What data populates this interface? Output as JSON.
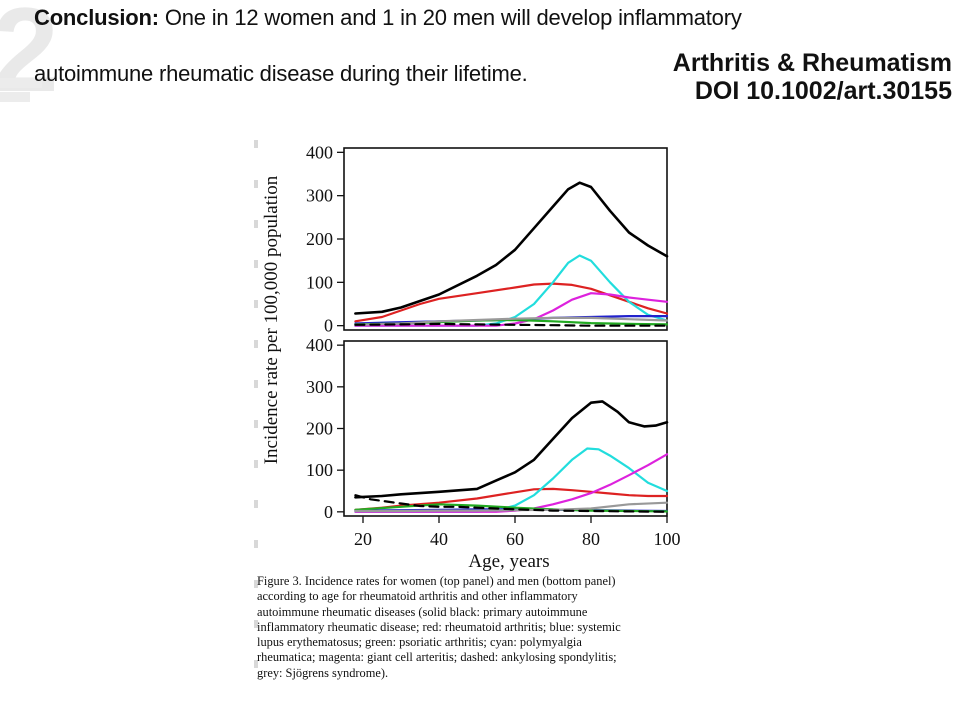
{
  "heading": {
    "label": "Conclusion:",
    "line1": " One in 12 women and 1 in 20 men will develop inflammatory",
    "line2": "autoimmune rheumatic disease during their lifetime."
  },
  "journal": {
    "name": "Arthritis & Rheumatism",
    "doi": "DOI 10.1002/art.30155"
  },
  "chart_data": {
    "type": "line",
    "xlabel": "Age, years",
    "ylabel": "Incidence rate per 100,000 population",
    "xlim": [
      15,
      100
    ],
    "ylim": [
      -10,
      410
    ],
    "x_ticks": [
      20,
      40,
      60,
      80,
      100
    ],
    "y_ticks": [
      0,
      100,
      200,
      300,
      400
    ],
    "panels": [
      {
        "series": [
          {
            "color": "#000000",
            "style": "solid",
            "points": [
              [
                18,
                28
              ],
              [
                25,
                32
              ],
              [
                30,
                42
              ],
              [
                40,
                72
              ],
              [
                50,
                115
              ],
              [
                55,
                140
              ],
              [
                60,
                175
              ],
              [
                65,
                225
              ],
              [
                70,
                275
              ],
              [
                74,
                315
              ],
              [
                77,
                330
              ],
              [
                80,
                320
              ],
              [
                85,
                265
              ],
              [
                90,
                215
              ],
              [
                95,
                185
              ],
              [
                100,
                160
              ]
            ]
          },
          {
            "color": "#dd2222",
            "style": "solid",
            "points": [
              [
                18,
                10
              ],
              [
                25,
                20
              ],
              [
                30,
                35
              ],
              [
                35,
                50
              ],
              [
                40,
                62
              ],
              [
                50,
                75
              ],
              [
                60,
                88
              ],
              [
                65,
                95
              ],
              [
                70,
                97
              ],
              [
                75,
                94
              ],
              [
                80,
                85
              ],
              [
                85,
                70
              ],
              [
                90,
                55
              ],
              [
                95,
                40
              ],
              [
                100,
                28
              ]
            ]
          },
          {
            "color": "#22dddd",
            "style": "solid",
            "points": [
              [
                18,
                0
              ],
              [
                50,
                0
              ],
              [
                55,
                5
              ],
              [
                60,
                20
              ],
              [
                65,
                50
              ],
              [
                70,
                100
              ],
              [
                74,
                145
              ],
              [
                77,
                162
              ],
              [
                80,
                150
              ],
              [
                85,
                100
              ],
              [
                90,
                55
              ],
              [
                95,
                25
              ],
              [
                100,
                12
              ]
            ]
          },
          {
            "color": "#dd22dd",
            "style": "solid",
            "points": [
              [
                18,
                0
              ],
              [
                55,
                0
              ],
              [
                60,
                5
              ],
              [
                65,
                15
              ],
              [
                70,
                35
              ],
              [
                75,
                60
              ],
              [
                80,
                75
              ],
              [
                85,
                72
              ],
              [
                90,
                65
              ],
              [
                95,
                60
              ],
              [
                100,
                55
              ]
            ]
          },
          {
            "color": "#2222cc",
            "style": "solid",
            "points": [
              [
                18,
                5
              ],
              [
                30,
                8
              ],
              [
                40,
                10
              ],
              [
                50,
                12
              ],
              [
                60,
                14
              ],
              [
                70,
                18
              ],
              [
                80,
                20
              ],
              [
                90,
                22
              ],
              [
                100,
                22
              ]
            ]
          },
          {
            "color": "#22aa22",
            "style": "solid",
            "points": [
              [
                18,
                3
              ],
              [
                30,
                5
              ],
              [
                40,
                8
              ],
              [
                50,
                12
              ],
              [
                60,
                13
              ],
              [
                70,
                10
              ],
              [
                80,
                6
              ],
              [
                90,
                4
              ],
              [
                100,
                3
              ]
            ]
          },
          {
            "color": "#999999",
            "style": "solid",
            "points": [
              [
                18,
                2
              ],
              [
                30,
                5
              ],
              [
                40,
                10
              ],
              [
                50,
                13
              ],
              [
                60,
                16
              ],
              [
                70,
                18
              ],
              [
                80,
                18
              ],
              [
                90,
                15
              ],
              [
                100,
                12
              ]
            ]
          },
          {
            "color": "#000000",
            "style": "dashed",
            "points": [
              [
                18,
                2
              ],
              [
                30,
                3
              ],
              [
                40,
                4
              ],
              [
                50,
                3
              ],
              [
                60,
                2
              ],
              [
                70,
                1
              ],
              [
                80,
                0
              ],
              [
                90,
                0
              ],
              [
                100,
                0
              ]
            ]
          }
        ]
      },
      {
        "series": [
          {
            "color": "#000000",
            "style": "solid",
            "points": [
              [
                18,
                35
              ],
              [
                25,
                38
              ],
              [
                30,
                42
              ],
              [
                40,
                48
              ],
              [
                50,
                55
              ],
              [
                55,
                75
              ],
              [
                60,
                95
              ],
              [
                65,
                125
              ],
              [
                70,
                175
              ],
              [
                75,
                225
              ],
              [
                80,
                262
              ],
              [
                83,
                265
              ],
              [
                87,
                240
              ],
              [
                90,
                215
              ],
              [
                94,
                205
              ],
              [
                97,
                207
              ],
              [
                100,
                215
              ]
            ]
          },
          {
            "color": "#dd2222",
            "style": "solid",
            "points": [
              [
                18,
                5
              ],
              [
                25,
                10
              ],
              [
                30,
                15
              ],
              [
                40,
                22
              ],
              [
                50,
                32
              ],
              [
                60,
                47
              ],
              [
                65,
                54
              ],
              [
                70,
                55
              ],
              [
                75,
                52
              ],
              [
                80,
                48
              ],
              [
                85,
                44
              ],
              [
                90,
                40
              ],
              [
                95,
                38
              ],
              [
                100,
                38
              ]
            ]
          },
          {
            "color": "#22dddd",
            "style": "solid",
            "points": [
              [
                18,
                0
              ],
              [
                50,
                0
              ],
              [
                55,
                3
              ],
              [
                60,
                15
              ],
              [
                65,
                40
              ],
              [
                70,
                80
              ],
              [
                75,
                125
              ],
              [
                79,
                152
              ],
              [
                82,
                150
              ],
              [
                85,
                135
              ],
              [
                90,
                105
              ],
              [
                95,
                70
              ],
              [
                100,
                50
              ]
            ]
          },
          {
            "color": "#dd22dd",
            "style": "solid",
            "points": [
              [
                18,
                0
              ],
              [
                55,
                0
              ],
              [
                60,
                3
              ],
              [
                65,
                8
              ],
              [
                70,
                18
              ],
              [
                75,
                30
              ],
              [
                80,
                45
              ],
              [
                85,
                65
              ],
              [
                90,
                88
              ],
              [
                95,
                112
              ],
              [
                100,
                138
              ]
            ]
          },
          {
            "color": "#2222cc",
            "style": "solid",
            "points": [
              [
                18,
                3
              ],
              [
                30,
                4
              ],
              [
                40,
                5
              ],
              [
                50,
                6
              ],
              [
                60,
                6
              ],
              [
                70,
                5
              ],
              [
                80,
                4
              ],
              [
                90,
                3
              ],
              [
                100,
                2
              ]
            ]
          },
          {
            "color": "#22aa22",
            "style": "solid",
            "points": [
              [
                18,
                5
              ],
              [
                30,
                12
              ],
              [
                40,
                18
              ],
              [
                50,
                15
              ],
              [
                60,
                10
              ],
              [
                70,
                6
              ],
              [
                80,
                3
              ],
              [
                90,
                2
              ],
              [
                100,
                1
              ]
            ]
          },
          {
            "color": "#999999",
            "style": "solid",
            "points": [
              [
                18,
                2
              ],
              [
                30,
                2
              ],
              [
                40,
                3
              ],
              [
                50,
                3
              ],
              [
                60,
                4
              ],
              [
                70,
                5
              ],
              [
                80,
                8
              ],
              [
                90,
                18
              ],
              [
                100,
                22
              ]
            ]
          },
          {
            "color": "#000000",
            "style": "dashed",
            "points": [
              [
                18,
                40
              ],
              [
                22,
                30
              ],
              [
                26,
                25
              ],
              [
                30,
                20
              ],
              [
                35,
                14
              ],
              [
                40,
                12
              ],
              [
                45,
                12
              ],
              [
                50,
                10
              ],
              [
                60,
                6
              ],
              [
                70,
                3
              ],
              [
                80,
                2
              ],
              [
                90,
                1
              ],
              [
                100,
                0
              ]
            ]
          }
        ]
      }
    ]
  },
  "caption": "Figure 3. Incidence rates for women (top panel) and men (bottom panel)\naccording to age for rheumatoid arthritis and other inflammatory\nautoimmune rheumatic diseases (solid black: primary autoimmune\ninflammatory rheumatic disease; red: rheumatoid arthritis; blue: systemic\nlupus erythematosus; green: psoriatic arthritis; cyan: polymyalgia\nrheumatica; magenta: giant cell arteritis; dashed: ankylosing spondylitis;\ngrey: Sjögrens syndrome)."
}
